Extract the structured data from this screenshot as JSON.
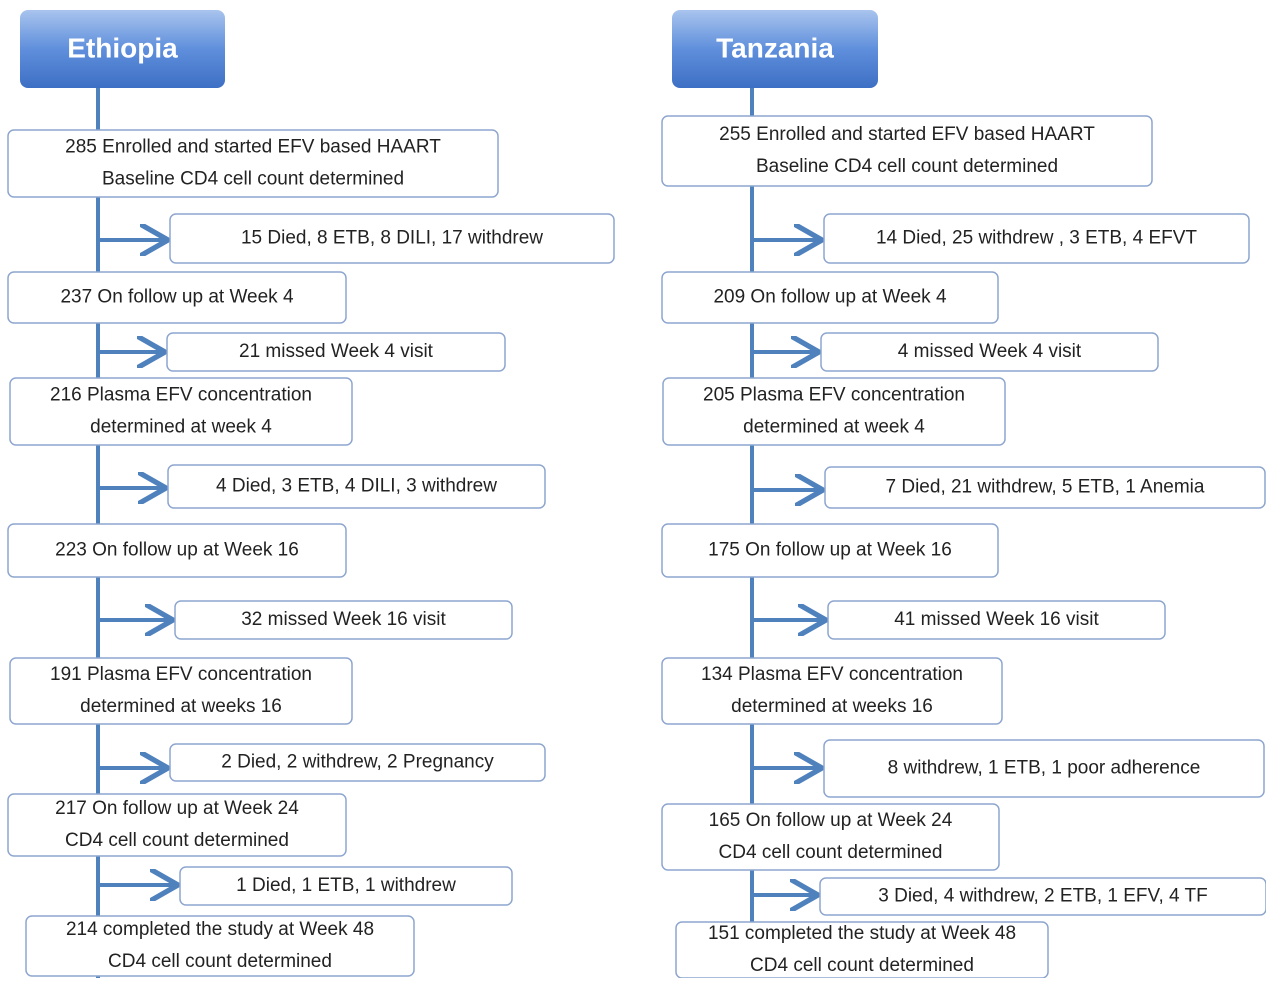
{
  "columns": [
    {
      "title": "Ethiopia",
      "main": [
        {
          "lines": [
            "285 Enrolled and started EFV based HAART",
            "Baseline CD4 cell count determined"
          ]
        },
        {
          "lines": [
            "237 On follow up at Week 4"
          ]
        },
        {
          "lines": [
            "216 Plasma EFV concentration",
            "determined  at week 4"
          ]
        },
        {
          "lines": [
            "223 On follow up at Week 16"
          ]
        },
        {
          "lines": [
            "191  Plasma EFV  concentration",
            "determined  at weeks 16"
          ]
        },
        {
          "lines": [
            "217 On follow up at Week 24",
            "CD4 cell count determined"
          ]
        },
        {
          "lines": [
            "214 completed the study at Week 48",
            "CD4 cell count determined"
          ]
        }
      ],
      "side": [
        "15 Died,  8 ETB, 8 DILI, 17 withdrew",
        "21 missed Week 4 visit",
        "4 Died,  3 ETB, 4 DILI, 3 withdrew",
        "32 missed Week 16 visit",
        "2 Died,  2 withdrew, 2 Pregnancy",
        "1 Died, 1 ETB, 1 withdrew"
      ]
    },
    {
      "title": "Tanzania",
      "main": [
        {
          "lines": [
            "255 Enrolled and started EFV based HAART",
            "Baseline CD4 cell count determined"
          ]
        },
        {
          "lines": [
            "209 On follow up at Week 4"
          ]
        },
        {
          "lines": [
            "205 Plasma EFV concentration",
            "determined  at week 4"
          ]
        },
        {
          "lines": [
            "175 On follow up at Week 16"
          ]
        },
        {
          "lines": [
            "134 Plasma EFV concentration",
            "determined  at weeks 16"
          ]
        },
        {
          "lines": [
            "165 On follow up at Week 24",
            "CD4 cell count determined"
          ]
        },
        {
          "lines": [
            "151 completed the study at Week 48",
            "CD4 cell count determined"
          ]
        }
      ],
      "side": [
        "14 Died, 25 withdrew , 3 ETB, 4 EFVT",
        "4 missed Week 4 visit",
        "7 Died, 21 withdrew, 5 ETB, 1 Anemia",
        "41 missed Week 16 visit",
        "8 withdrew, 1 ETB,  1 poor adherence",
        "3 Died, 4 withdrew, 2 ETB,  1 EFV, 4 TF"
      ]
    }
  ]
}
